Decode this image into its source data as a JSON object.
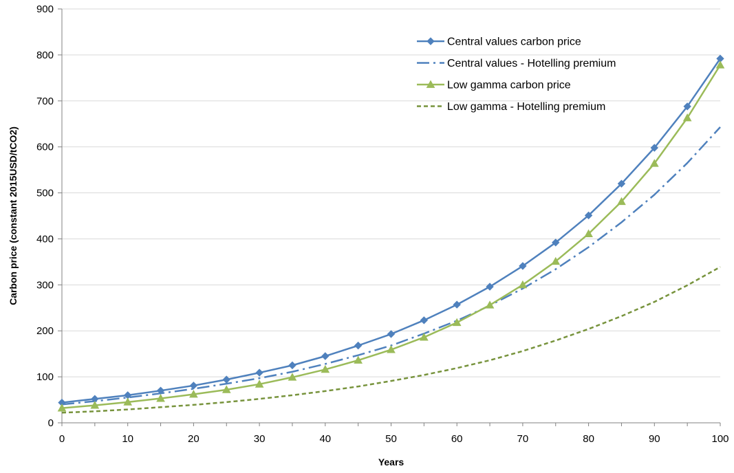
{
  "chart_data": {
    "type": "line",
    "title": "",
    "xlabel": "Years",
    "ylabel": "Carbon price (constant 2015USD/tCO2)",
    "xlim": [
      0,
      100
    ],
    "ylim": [
      0,
      900
    ],
    "x_ticks": [
      0,
      10,
      20,
      30,
      40,
      50,
      60,
      70,
      80,
      90,
      100
    ],
    "y_ticks": [
      0,
      100,
      200,
      300,
      400,
      500,
      600,
      700,
      800,
      900
    ],
    "grid": "horizontal",
    "legend_position": "top-right",
    "x": [
      0,
      5,
      10,
      15,
      20,
      25,
      30,
      35,
      40,
      45,
      50,
      55,
      60,
      65,
      70,
      75,
      80,
      85,
      90,
      95,
      100
    ],
    "series": [
      {
        "name": "Central values carbon price",
        "color": "#4F81BD",
        "line": "solid",
        "marker": "diamond",
        "values": [
          44,
          52,
          60,
          70,
          81,
          94,
          109,
          125,
          145,
          168,
          193,
          223,
          257,
          296,
          341,
          392,
          451,
          520,
          598,
          688,
          792
        ]
      },
      {
        "name": "Central values - Hotelling premium",
        "color": "#4F81BD",
        "line": "dashdot",
        "marker": "none",
        "values": [
          40,
          47,
          55,
          64,
          74,
          85,
          97,
          111,
          128,
          147,
          168,
          194,
          222,
          255,
          292,
          334,
          382,
          436,
          496,
          565,
          643
        ]
      },
      {
        "name": "Low gamma carbon price",
        "color": "#9BBB59",
        "line": "solid",
        "marker": "triangle",
        "values": [
          32,
          38,
          45,
          53,
          62,
          72,
          84,
          99,
          116,
          136,
          159,
          186,
          218,
          256,
          300,
          351,
          411,
          481,
          564,
          663,
          778
        ]
      },
      {
        "name": "Low gamma - Hotelling premium",
        "color": "#77933C",
        "line": "dashed",
        "marker": "none",
        "values": [
          22,
          25,
          29,
          34,
          39,
          45,
          52,
          60,
          69,
          79,
          91,
          104,
          119,
          136,
          156,
          179,
          204,
          232,
          263,
          299,
          339
        ]
      }
    ]
  }
}
